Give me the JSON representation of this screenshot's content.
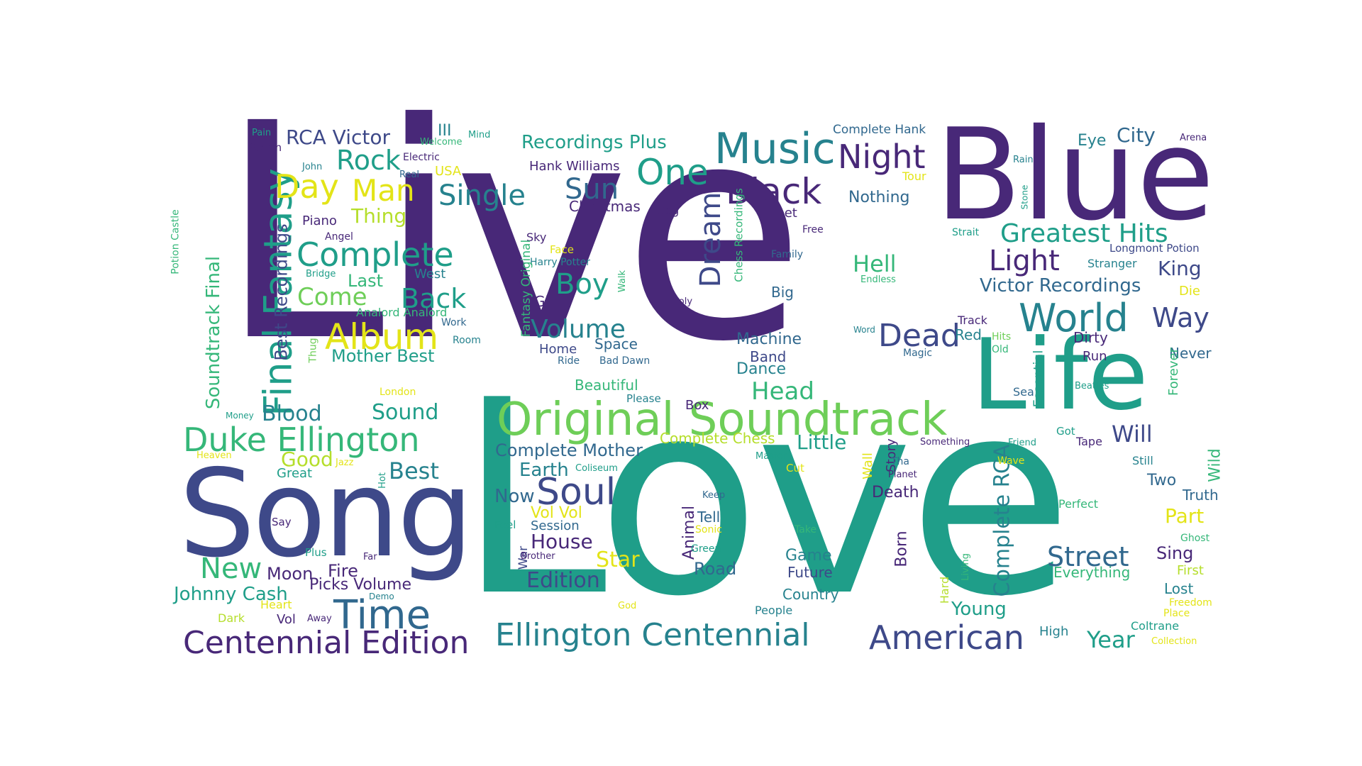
{
  "palette": {
    "d1": "#482878",
    "d2": "#3e4989",
    "d3": "#31688e",
    "d4": "#26828e",
    "d5": "#1f9e89",
    "d6": "#35b779",
    "d7": "#6ece58",
    "d8": "#b5de2b",
    "d9": "#e3e418"
  },
  "words": [
    {
      "t": "Live",
      "c": "d1"
    },
    {
      "t": "Love",
      "c": "d5"
    },
    {
      "t": "Blue",
      "c": "d1"
    },
    {
      "t": "Song",
      "c": "d2"
    },
    {
      "t": "Life",
      "c": "d5"
    },
    {
      "t": "Original Soundtrack",
      "c": "d7"
    },
    {
      "t": "Music",
      "c": "d4"
    },
    {
      "t": "Final Fantasy",
      "c": "d5"
    },
    {
      "t": "Duke Ellington",
      "c": "d6"
    },
    {
      "t": "Time",
      "c": "d3"
    },
    {
      "t": "Ellington Centennial",
      "c": "d4"
    },
    {
      "t": "Centennial Edition",
      "c": "d1"
    },
    {
      "t": "American",
      "c": "d2"
    },
    {
      "t": "World",
      "c": "d4"
    },
    {
      "t": "Black",
      "c": "d1"
    },
    {
      "t": "Night",
      "c": "d1"
    },
    {
      "t": "One",
      "c": "d5"
    },
    {
      "t": "Soul",
      "c": "d2"
    },
    {
      "t": "Album",
      "c": "d9"
    },
    {
      "t": "Complete",
      "c": "d5"
    },
    {
      "t": "Greatest Hits",
      "c": "d5"
    },
    {
      "t": "Dead",
      "c": "d2"
    },
    {
      "t": "Street",
      "c": "d3"
    },
    {
      "t": "Day",
      "c": "d9"
    },
    {
      "t": "Man",
      "c": "d9"
    },
    {
      "t": "Rock",
      "c": "d5"
    },
    {
      "t": "Single",
      "c": "d4"
    },
    {
      "t": "Sun",
      "c": "d3"
    },
    {
      "t": "Back",
      "c": "d5"
    },
    {
      "t": "Boy",
      "c": "d5"
    },
    {
      "t": "Volume",
      "c": "d4"
    },
    {
      "t": "Light",
      "c": "d1"
    },
    {
      "t": "Way",
      "c": "d2"
    },
    {
      "t": "Dream",
      "c": "d2"
    },
    {
      "t": "Complete RCA",
      "c": "d4"
    },
    {
      "t": "Soundtrack Final",
      "c": "d6"
    },
    {
      "t": "Best Recordings",
      "c": "d2"
    },
    {
      "t": "RCA Victor",
      "c": "d2"
    },
    {
      "t": "Recordings Plus",
      "c": "d5"
    },
    {
      "t": "City",
      "c": "d3"
    },
    {
      "t": "Eye",
      "c": "d4"
    },
    {
      "t": "Complete Hank",
      "c": "d3"
    },
    {
      "t": "Hank Williams",
      "c": "d1"
    },
    {
      "t": "Christmas",
      "c": "d1"
    },
    {
      "t": "Nothing",
      "c": "d3"
    },
    {
      "t": "Hell",
      "c": "d6"
    },
    {
      "t": "King",
      "c": "d2"
    },
    {
      "t": "Victor Recordings",
      "c": "d3"
    },
    {
      "t": "Come",
      "c": "d7"
    },
    {
      "t": "Thing",
      "c": "d8"
    },
    {
      "t": "Last",
      "c": "d6"
    },
    {
      "t": "Head",
      "c": "d6"
    },
    {
      "t": "Blood",
      "c": "d4"
    },
    {
      "t": "Sound",
      "c": "d5"
    },
    {
      "t": "Best",
      "c": "d4"
    },
    {
      "t": "Good",
      "c": "d8"
    },
    {
      "t": "New",
      "c": "d6"
    },
    {
      "t": "Will",
      "c": "d2"
    },
    {
      "t": "Little",
      "c": "d5"
    },
    {
      "t": "Year",
      "c": "d5"
    },
    {
      "t": "Young",
      "c": "d5"
    },
    {
      "t": "Edition",
      "c": "d2"
    },
    {
      "t": "Star",
      "c": "d9"
    },
    {
      "t": "House",
      "c": "d1"
    },
    {
      "t": "Complete Mother",
      "c": "d3"
    },
    {
      "t": "Earth",
      "c": "d4"
    },
    {
      "t": "Now",
      "c": "d3"
    },
    {
      "t": "Mother Best",
      "c": "d5"
    },
    {
      "t": "Dance",
      "c": "d4"
    },
    {
      "t": "Machine",
      "c": "d3"
    },
    {
      "t": "Band",
      "c": "d2"
    },
    {
      "t": "Beautiful",
      "c": "d6"
    },
    {
      "t": "Complete Chess",
      "c": "d8"
    },
    {
      "t": "Johnny Cash",
      "c": "d5"
    },
    {
      "t": "Picks Volume",
      "c": "d1"
    },
    {
      "t": "Moon",
      "c": "d1"
    },
    {
      "t": "Fire",
      "c": "d1"
    },
    {
      "t": "Part",
      "c": "d9"
    },
    {
      "t": "Sing",
      "c": "d1"
    },
    {
      "t": "Truth",
      "c": "d3"
    },
    {
      "t": "Wild",
      "c": "d6"
    },
    {
      "t": "Two",
      "c": "d3"
    },
    {
      "t": "Death",
      "c": "d1"
    },
    {
      "t": "Born",
      "c": "d1"
    },
    {
      "t": "Animal",
      "c": "d1"
    },
    {
      "t": "Tell",
      "c": "d3"
    },
    {
      "t": "Road",
      "c": "d3"
    },
    {
      "t": "Game",
      "c": "d4"
    },
    {
      "t": "Future",
      "c": "d2"
    },
    {
      "t": "Country",
      "c": "d4"
    },
    {
      "t": "Vol Vol",
      "c": "d9"
    },
    {
      "t": "Session",
      "c": "d3"
    },
    {
      "t": "Space",
      "c": "d3"
    },
    {
      "t": "Home",
      "c": "d2"
    },
    {
      "t": "Box",
      "c": "d1"
    },
    {
      "t": "Red",
      "c": "d4"
    },
    {
      "t": "Dirty",
      "c": "d1"
    },
    {
      "t": "Never",
      "c": "d3"
    },
    {
      "t": "Run",
      "c": "d1"
    },
    {
      "t": "Forever",
      "c": "d6"
    },
    {
      "t": "Essential",
      "c": "d5"
    },
    {
      "t": "Story",
      "c": "d1"
    },
    {
      "t": "Wall",
      "c": "d9"
    },
    {
      "t": "Lost",
      "c": "d4"
    },
    {
      "t": "First",
      "c": "d8"
    },
    {
      "t": "Everything",
      "c": "d6"
    },
    {
      "t": "Perfect",
      "c": "d6"
    },
    {
      "t": "Coltrane",
      "c": "d5"
    },
    {
      "t": "High",
      "c": "d4"
    },
    {
      "t": "Girl",
      "c": "d1"
    },
    {
      "t": "Big",
      "c": "d3"
    },
    {
      "t": "Piano",
      "c": "d1"
    },
    {
      "t": "Let",
      "c": "d1"
    },
    {
      "t": "Hard",
      "c": "d8"
    },
    {
      "t": "Die",
      "c": "d9"
    },
    {
      "t": "Still",
      "c": "d4"
    },
    {
      "t": "Vol",
      "c": "d1"
    },
    {
      "t": "Storm",
      "c": "d1"
    },
    {
      "t": "Pain",
      "c": "d5"
    },
    {
      "t": "Electric",
      "c": "d1"
    },
    {
      "t": "USA",
      "c": "d9"
    },
    {
      "t": "III",
      "c": "d4"
    },
    {
      "t": "Welcome",
      "c": "d6"
    },
    {
      "t": "Mind",
      "c": "d5"
    },
    {
      "t": "John",
      "c": "d4"
    },
    {
      "t": "Real",
      "c": "d3"
    },
    {
      "t": "Angel",
      "c": "d1"
    },
    {
      "t": "Sky",
      "c": "d1"
    },
    {
      "t": "Dog",
      "c": "d1"
    },
    {
      "t": "Face",
      "c": "d9"
    },
    {
      "t": "Harry Potter",
      "c": "d4"
    },
    {
      "t": "Free",
      "c": "d1"
    },
    {
      "t": "Family",
      "c": "d3"
    },
    {
      "t": "Tour",
      "c": "d9"
    },
    {
      "t": "Rain",
      "c": "d4"
    },
    {
      "t": "Stone",
      "c": "d5"
    },
    {
      "t": "Arena",
      "c": "d1"
    },
    {
      "t": "Strait",
      "c": "d5"
    },
    {
      "t": "Longmont Potion",
      "c": "d2"
    },
    {
      "t": "Stranger",
      "c": "d4"
    },
    {
      "t": "Endless",
      "c": "d6"
    },
    {
      "t": "Potion Castle",
      "c": "d6"
    },
    {
      "t": "Bridge",
      "c": "d5"
    },
    {
      "t": "West",
      "c": "d4"
    },
    {
      "t": "Analord Analord",
      "c": "d6"
    },
    {
      "t": "Work",
      "c": "d3"
    },
    {
      "t": "Room",
      "c": "d4"
    },
    {
      "t": "Thug",
      "c": "d7"
    },
    {
      "t": "London",
      "c": "d9"
    },
    {
      "t": "Money",
      "c": "d5"
    },
    {
      "t": "Heaven",
      "c": "d9"
    },
    {
      "t": "Jazz",
      "c": "d9"
    },
    {
      "t": "Great",
      "c": "d5"
    },
    {
      "t": "Hot",
      "c": "d5"
    },
    {
      "t": "Coliseum",
      "c": "d5"
    },
    {
      "t": "Say",
      "c": "d1"
    },
    {
      "t": "Plus",
      "c": "d5"
    },
    {
      "t": "Far",
      "c": "d1"
    },
    {
      "t": "Demo",
      "c": "d4"
    },
    {
      "t": "Heart",
      "c": "d9"
    },
    {
      "t": "Dark",
      "c": "d8"
    },
    {
      "t": "Away",
      "c": "d1"
    },
    {
      "t": "Holy",
      "c": "d1"
    },
    {
      "t": "Walk",
      "c": "d6"
    },
    {
      "t": "Chess Recordings",
      "c": "d6"
    },
    {
      "t": "Fantasy Original",
      "c": "d6"
    },
    {
      "t": "Ride",
      "c": "d3"
    },
    {
      "t": "Bad Dawn",
      "c": "d3"
    },
    {
      "t": "Please",
      "c": "d4"
    },
    {
      "t": "Word",
      "c": "d4"
    },
    {
      "t": "Magic",
      "c": "d3"
    },
    {
      "t": "Track",
      "c": "d1"
    },
    {
      "t": "Hits",
      "c": "d7"
    },
    {
      "t": "Old",
      "c": "d6"
    },
    {
      "t": "Sea",
      "c": "d3"
    },
    {
      "t": "Beatles",
      "c": "d5"
    },
    {
      "t": "Got",
      "c": "d5"
    },
    {
      "t": "Tape",
      "c": "d1"
    },
    {
      "t": "Something",
      "c": "d1"
    },
    {
      "t": "Friend",
      "c": "d5"
    },
    {
      "t": "Tha",
      "c": "d3"
    },
    {
      "t": "Planet",
      "c": "d1"
    },
    {
      "t": "Wave",
      "c": "d9"
    },
    {
      "t": "Master",
      "c": "d5"
    },
    {
      "t": "Cut",
      "c": "d9"
    },
    {
      "t": "Keep",
      "c": "d3"
    },
    {
      "t": "Sonic",
      "c": "d9"
    },
    {
      "t": "Green",
      "c": "d5"
    },
    {
      "t": "Take",
      "c": "d6"
    },
    {
      "t": "Feel",
      "c": "d5"
    },
    {
      "t": "War",
      "c": "d2"
    },
    {
      "t": "Brother",
      "c": "d1"
    },
    {
      "t": "People",
      "c": "d4"
    },
    {
      "t": "God",
      "c": "d9"
    },
    {
      "t": "Living",
      "c": "d6"
    },
    {
      "t": "Ghost",
      "c": "d6"
    },
    {
      "t": "Freedom",
      "c": "d9"
    },
    {
      "t": "Place",
      "c": "d9"
    },
    {
      "t": "Collection",
      "c": "d9"
    }
  ]
}
